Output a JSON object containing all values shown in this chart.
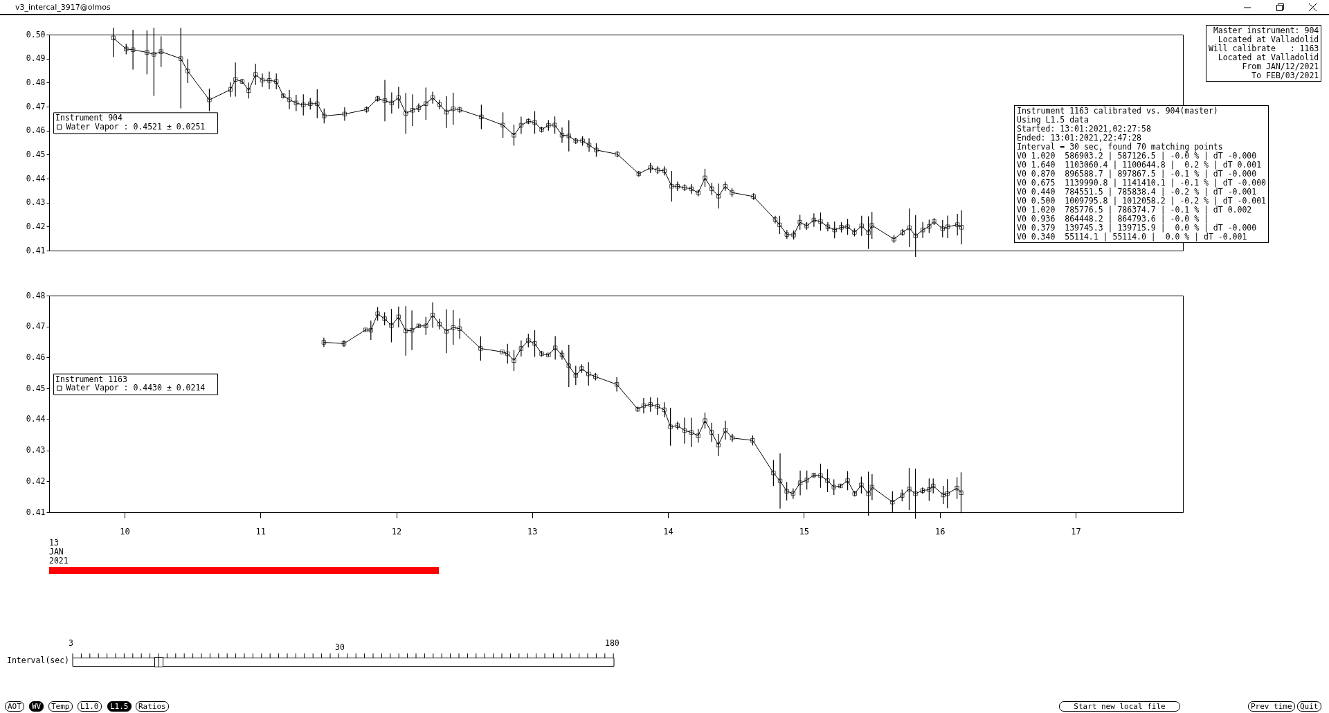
{
  "chart_data": [
    {
      "type": "line",
      "title": "v3_intercal_3917@olmos",
      "legend_title": "Instrument 904",
      "legend": "left",
      "marker": "square",
      "grid": false,
      "tick_labels": "y",
      "xlim": [
        9.445,
        17.79
      ],
      "xticks": [
        10,
        11,
        12,
        13,
        14,
        15,
        16,
        17
      ],
      "ylim": [
        0.41,
        0.5
      ],
      "yticks": [
        0.41,
        0.42,
        0.43,
        0.44,
        0.45,
        0.46,
        0.47,
        0.48,
        0.49,
        {
          "value": 0.5,
          "label": "0.50"
        }
      ],
      "x": [
        9.917,
        10.012,
        10.062,
        10.165,
        10.216,
        10.269,
        10.414,
        10.465,
        10.624,
        10.78,
        10.816,
        10.866,
        10.914,
        10.964,
        11.014,
        11.065,
        11.117,
        11.168,
        11.213,
        11.263,
        11.316,
        11.367,
        11.418,
        11.469,
        11.62,
        11.782,
        11.863,
        11.916,
        11.966,
        12.017,
        12.07,
        12.12,
        12.165,
        12.218,
        12.268,
        12.318,
        12.369,
        12.419,
        12.467,
        12.626,
        12.785,
        12.866,
        12.919,
        12.972,
        13.019,
        13.07,
        13.12,
        13.167,
        13.22,
        13.27,
        13.321,
        13.371,
        13.419,
        13.472,
        13.626,
        13.785,
        13.871,
        13.924,
        13.974,
        14.027,
        14.07,
        14.123,
        14.173,
        14.222,
        14.272,
        14.322,
        14.372,
        14.421,
        14.471,
        14.63,
        14.789,
        14.822,
        14.875,
        14.925,
        14.971,
        15.021,
        15.074,
        15.123,
        15.176,
        15.226,
        15.276,
        15.322,
        15.372,
        15.425,
        15.475,
        15.501,
        15.663,
        15.726,
        15.776,
        15.822,
        15.875,
        15.922,
        15.958,
        16.021,
        16.058,
        16.13,
        16.16
      ],
      "series": [
        {
          "name": "Water Vapor :   0.4521 ± 0.0251",
          "color": "#000000",
          "values": [
            0.4986,
            0.494,
            0.4937,
            0.4926,
            0.4918,
            0.4929,
            0.49,
            0.4848,
            0.4728,
            0.4771,
            0.4813,
            0.4805,
            0.4767,
            0.4834,
            0.481,
            0.4809,
            0.4805,
            0.4745,
            0.4729,
            0.4715,
            0.4707,
            0.4712,
            0.4712,
            0.4661,
            0.4669,
            0.4688,
            0.4733,
            0.4725,
            0.4715,
            0.4737,
            0.4672,
            0.4685,
            0.4695,
            0.4712,
            0.4737,
            0.4709,
            0.4677,
            0.4691,
            0.4687,
            0.4657,
            0.4623,
            0.4581,
            0.4622,
            0.4639,
            0.4634,
            0.4604,
            0.4622,
            0.4623,
            0.4581,
            0.4578,
            0.4557,
            0.4557,
            0.454,
            0.4519,
            0.4502,
            0.442,
            0.4445,
            0.4435,
            0.4432,
            0.4368,
            0.4368,
            0.4362,
            0.4357,
            0.434,
            0.4403,
            0.4357,
            0.4327,
            0.4368,
            0.4342,
            0.4325,
            0.4229,
            0.4207,
            0.4167,
            0.4165,
            0.4218,
            0.4203,
            0.4227,
            0.4221,
            0.4199,
            0.4186,
            0.4197,
            0.4199,
            0.4176,
            0.4203,
            0.4175,
            0.4205,
            0.4148,
            0.4176,
            0.4195,
            0.4161,
            0.4186,
            0.4201,
            0.4221,
            0.4191,
            0.4199,
            0.4208,
            0.4197
          ],
          "errors": [
            0.008,
            0.0022,
            0.0083,
            0.0091,
            0.0173,
            0.0064,
            0.0207,
            0.005,
            0.0047,
            0.003,
            0.0071,
            0.001,
            0.0033,
            0.0044,
            0.0028,
            0.0037,
            0.0033,
            0.001,
            0.004,
            0.0034,
            0.0044,
            0.0024,
            0.006,
            0.0031,
            0.0028,
            0.0013,
            0.0012,
            0.0086,
            0.0044,
            0.0045,
            0.0085,
            0.0066,
            0.0018,
            0.0067,
            0.0025,
            0.002,
            0.0066,
            0.0067,
            0.0013,
            0.0051,
            0.0053,
            0.0044,
            0.0036,
            0.0012,
            0.0047,
            0.0012,
            0.0022,
            0.0036,
            0.0032,
            0.0065,
            0.0013,
            0.002,
            0.0028,
            0.0028,
            0.0013,
            0.0012,
            0.0021,
            0.0016,
            0.0019,
            0.0064,
            0.0019,
            0.0014,
            0.0021,
            0.0014,
            0.0038,
            0.0025,
            0.0052,
            0.0019,
            0.0019,
            0.0014,
            0.0016,
            0.0038,
            0.0019,
            0.0019,
            0.0031,
            0.0016,
            0.0028,
            0.0038,
            0.0019,
            0.0035,
            0.0021,
            0.0033,
            0.0017,
            0.0042,
            0.0068,
            0.0056,
            0.0017,
            0.0014,
            0.008,
            0.0087,
            0.0033,
            0.0028,
            0.0014,
            0.0036,
            0.0047,
            0.0045,
            0.0071
          ]
        }
      ],
      "annotations": [
        "Master instrument: 904\nLocated at Valladolid\nWill calibrate   : 1163\nLocated at Valladolid\nFrom JAN/12/2021\nTo FEB/03/2021",
        "Instrument 1163 calibrated vs. 904(master)\nUsing L1.5 data\nStarted: 13:01:2021,02:27:58\nEnded: 13:01:2021,22:47:28\nInterval = 30 sec, found 70 matching points\nV0 1.020  586903.2 | 587126.5 | -0.0 % | dT -0.000\nV0 1.640  1103060.4 | 1100644.8 |  0.2 % | dT 0.001\nV0 0.870  896588.7 | 897867.5 | -0.1 % | dT -0.000\nV0 0.675  1139990.8 | 1141410.1 | -0.1 % | dT -0.000\nV0 0.440  784551.5 | 785838.4 | -0.2 % | dT -0.001\nV0 0.500  1009795.8 | 1012058.2 | -0.2 % | dT -0.001\nV0 1.020  785776.5 | 786374.7 | -0.1 % | dT 0.002\nV0 0.936  864448.2 | 864793.6 | -0.0 % |\nV0 0.379  139745.3 | 139715.9 |  0.0 % | dT -0.000\nV0 0.340  55114.1 | 55114.0 |  0.0 % | dT -0.001",
        "13\nJAN\n2021",
        "Interval(sec)",
        "3",
        "30",
        "180",
        "AOT",
        "WV",
        "Temp",
        "L1.0",
        "L1.5",
        "Ratios",
        "Start new local file",
        "Prev time",
        "Quit"
      ]
    },
    {
      "type": "line",
      "legend_title": "Instrument 1163",
      "legend": "left",
      "marker": "square",
      "grid": false,
      "xlim": [
        9.445,
        17.79
      ],
      "xticks": [
        10,
        11,
        12,
        13,
        14,
        15,
        16,
        17
      ],
      "ylim": [
        0.41,
        0.48
      ],
      "yticks": [
        0.41,
        0.42,
        0.43,
        0.44,
        0.45,
        0.46,
        0.47,
        0.48
      ],
      "x": [
        11.467,
        11.615,
        11.774,
        11.813,
        11.863,
        11.914,
        11.964,
        12.017,
        12.07,
        12.115,
        12.165,
        12.218,
        12.268,
        12.318,
        12.369,
        12.419,
        12.467,
        12.621,
        12.78,
        12.819,
        12.866,
        12.919,
        12.972,
        13.019,
        13.07,
        13.12,
        13.17,
        13.22,
        13.27,
        13.321,
        13.365,
        13.415,
        13.466,
        13.623,
        13.778,
        13.821,
        13.871,
        13.922,
        13.972,
        14.018,
        14.07,
        14.122,
        14.171,
        14.222,
        14.272,
        14.321,
        14.37,
        14.422,
        14.473,
        14.623,
        14.776,
        14.825,
        14.874,
        14.921,
        14.973,
        15.022,
        15.074,
        15.123,
        15.174,
        15.221,
        15.27,
        15.322,
        15.374,
        15.423,
        15.475,
        15.502,
        15.652,
        15.723,
        15.775,
        15.821,
        15.873,
        15.922,
        15.952,
        16.026,
        16.056,
        16.127,
        16.157
      ],
      "series": [
        {
          "name": "Water Vapor :   0.4430 ± 0.0214",
          "color": "#000000",
          "values": [
            0.4649,
            0.4645,
            0.4689,
            0.4688,
            0.4741,
            0.4725,
            0.4703,
            0.4731,
            0.4686,
            0.4688,
            0.4702,
            0.4702,
            0.4737,
            0.4708,
            0.4685,
            0.4697,
            0.4693,
            0.4629,
            0.4618,
            0.4612,
            0.459,
            0.4629,
            0.4655,
            0.4645,
            0.4612,
            0.4608,
            0.4631,
            0.4608,
            0.4573,
            0.4542,
            0.4564,
            0.4547,
            0.4538,
            0.4513,
            0.4433,
            0.4444,
            0.4448,
            0.4442,
            0.4431,
            0.4376,
            0.438,
            0.4364,
            0.4358,
            0.4347,
            0.4396,
            0.4358,
            0.4317,
            0.4365,
            0.434,
            0.4332,
            0.4227,
            0.4201,
            0.4168,
            0.416,
            0.4195,
            0.4204,
            0.422,
            0.4218,
            0.4202,
            0.4181,
            0.4185,
            0.4202,
            0.416,
            0.4188,
            0.416,
            0.4181,
            0.4133,
            0.4154,
            0.4175,
            0.416,
            0.417,
            0.4173,
            0.4185,
            0.4156,
            0.416,
            0.4178,
            0.4163
          ],
          "errors": [
            0.0015,
            0.0011,
            0.0005,
            0.0031,
            0.0022,
            0.0021,
            0.0054,
            0.0034,
            0.008,
            0.0064,
            0.0006,
            0.0029,
            0.0041,
            0.0017,
            0.0071,
            0.0056,
            0.0033,
            0.0039,
            0.0003,
            0.0032,
            0.0034,
            0.0026,
            0.0022,
            0.0043,
            0.0009,
            0.0004,
            0.0038,
            0.0015,
            0.0068,
            0.0031,
            0.0014,
            0.0038,
            0.0012,
            0.0023,
            0.0008,
            0.0025,
            0.0023,
            0.0028,
            0.0024,
            0.0061,
            0.0013,
            0.0042,
            0.0047,
            0.0022,
            0.0026,
            0.0031,
            0.0036,
            0.0031,
            0.0013,
            0.0016,
            0.0042,
            0.0089,
            0.003,
            0.0017,
            0.004,
            0.0031,
            0.0007,
            0.0039,
            0.0037,
            0.0025,
            0.0006,
            0.0031,
            0.0009,
            0.0027,
            0.0071,
            0.0042,
            0.0035,
            0.0019,
            0.0068,
            0.0081,
            0.001,
            0.0036,
            0.0024,
            0.0029,
            0.0047,
            0.0035,
            0.0066
          ]
        }
      ]
    }
  ]
}
